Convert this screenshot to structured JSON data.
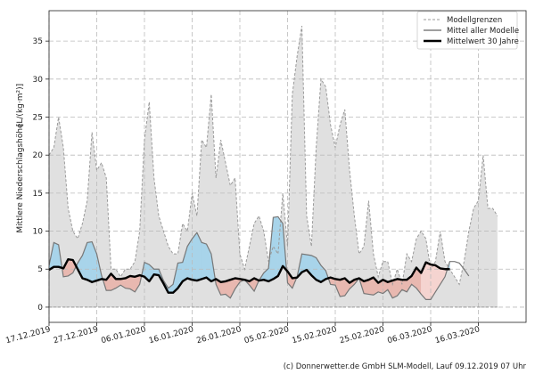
{
  "chart_data": {
    "type": "area",
    "ylabel_main": "Mittlere Niederschlagshöhe",
    "ylabel_unit": "[L/(kg·m²)]",
    "ylim": [
      -2,
      39
    ],
    "yticks": [
      0,
      5,
      10,
      15,
      20,
      25,
      30,
      35
    ],
    "x_dates": [
      "17.12.2019",
      "18.12.2019",
      "19.12.2019",
      "20.12.2019",
      "21.12.2019",
      "22.12.2019",
      "23.12.2019",
      "24.12.2019",
      "25.12.2019",
      "26.12.2019",
      "27.12.2019",
      "28.12.2019",
      "29.12.2019",
      "30.12.2019",
      "31.12.2019",
      "01.01.2020",
      "02.01.2020",
      "03.01.2020",
      "04.01.2020",
      "05.01.2020",
      "06.01.2020",
      "07.01.2020",
      "08.01.2020",
      "09.01.2020",
      "10.01.2020",
      "11.01.2020",
      "12.01.2020",
      "13.01.2020",
      "14.01.2020",
      "15.01.2020",
      "16.01.2020",
      "17.01.2020",
      "18.01.2020",
      "19.01.2020",
      "20.01.2020",
      "21.01.2020",
      "22.01.2020",
      "23.01.2020",
      "24.01.2020",
      "25.01.2020",
      "26.01.2020",
      "27.01.2020",
      "28.01.2020",
      "29.01.2020",
      "30.01.2020",
      "31.01.2020",
      "01.02.2020",
      "02.02.2020",
      "03.02.2020",
      "04.02.2020",
      "05.02.2020",
      "06.02.2020",
      "07.02.2020",
      "08.02.2020",
      "09.02.2020",
      "10.02.2020",
      "11.02.2020",
      "12.02.2020",
      "13.02.2020",
      "14.02.2020",
      "15.02.2020",
      "16.02.2020",
      "17.02.2020",
      "18.02.2020",
      "19.02.2020",
      "20.02.2020",
      "21.02.2020",
      "22.02.2020",
      "23.02.2020",
      "24.02.2020",
      "25.02.2020",
      "26.02.2020",
      "27.02.2020",
      "28.02.2020",
      "29.02.2020",
      "01.03.2020",
      "02.03.2020",
      "03.03.2020",
      "04.03.2020",
      "05.03.2020",
      "06.03.2020",
      "07.03.2020",
      "08.03.2020",
      "09.03.2020",
      "10.03.2020",
      "11.03.2020",
      "12.03.2020",
      "13.03.2020",
      "14.03.2020",
      "15.03.2020",
      "16.03.2020",
      "17.03.2020",
      "18.03.2020",
      "19.03.2020",
      "20.03.2020",
      "21.03.2020",
      "22.03.2020",
      "23.03.2020",
      "24.03.2020",
      "25.03.2020",
      "26.03.2020"
    ],
    "xtick_labels": [
      "17.12.2019",
      "27.12.2019",
      "06.01.2020",
      "16.01.2020",
      "26.01.2020",
      "05.02.2020",
      "15.02.2020",
      "25.02.2020",
      "06.03.2020",
      "16.03.2020"
    ],
    "xtick_day_index": [
      0,
      10,
      20,
      30,
      40,
      50,
      60,
      70,
      80,
      90
    ],
    "series": [
      {
        "name": "Modellgrenzen",
        "values_upper": [
          20,
          21,
          25,
          21,
          13,
          10,
          9,
          11,
          14,
          23,
          18,
          19,
          17,
          5,
          5,
          4,
          5,
          5,
          6,
          10,
          22,
          27,
          17,
          12,
          10,
          8,
          7,
          7,
          11,
          10,
          15,
          12,
          22,
          21,
          28,
          17,
          22,
          19,
          16,
          17,
          7,
          5,
          8,
          11,
          12,
          10,
          6,
          8,
          7,
          15,
          8,
          28,
          33,
          37,
          12,
          8,
          21,
          30,
          29,
          24,
          21,
          24,
          26,
          18,
          12,
          7,
          8,
          14,
          7,
          4,
          6,
          6,
          3,
          5,
          3,
          7,
          6,
          9,
          10,
          9,
          5,
          6,
          10,
          6,
          5,
          4,
          3,
          6,
          10,
          13,
          14,
          20,
          13,
          13,
          12
        ],
        "values_lower": [
          0,
          0,
          0,
          0,
          0,
          0,
          0,
          0,
          0,
          0,
          0,
          0,
          0,
          0,
          0,
          0,
          0,
          0,
          0,
          0,
          0,
          0,
          0,
          0,
          0,
          0,
          0,
          0,
          0,
          0,
          0,
          0,
          0,
          0,
          0,
          0,
          0,
          0,
          0,
          0,
          0,
          0,
          0,
          0,
          0,
          0,
          0,
          0,
          0,
          0,
          0,
          0,
          0,
          0,
          0,
          0,
          0,
          0,
          0,
          0,
          0,
          0,
          0,
          0,
          0,
          0,
          0,
          0,
          0,
          0,
          0,
          0,
          0,
          0,
          0,
          0,
          0,
          0,
          0,
          0,
          0,
          0,
          0,
          0,
          0,
          0,
          0,
          0,
          0,
          0,
          0,
          0,
          0,
          0,
          0
        ]
      },
      {
        "name": "Mittel aller Modelle",
        "values": [
          5.5,
          8.5,
          8.2,
          4,
          4.1,
          4.5,
          5.8,
          6.8,
          8.5,
          8.6,
          7,
          4.2,
          2.2,
          2.2,
          2.5,
          2.9,
          2.5,
          2.4,
          2,
          3,
          5.9,
          5.6,
          5,
          5,
          3.5,
          2.5,
          3,
          5.8,
          5.9,
          8,
          9,
          9.8,
          8.5,
          8.3,
          7,
          3,
          1.6,
          1.7,
          1.2,
          2.4,
          3.3,
          3.6,
          2.9,
          2.1,
          3.5,
          4.5,
          5.1,
          11.8,
          11.9,
          11,
          3.2,
          2.5,
          4,
          7,
          6.9,
          6.8,
          6.5,
          5.5,
          4.8,
          3,
          2.9,
          1.4,
          1.5,
          2.4,
          3,
          3.8,
          1.8,
          1.7,
          1.6,
          2,
          1.8,
          2.3,
          1.2,
          1.5,
          2.3,
          2,
          3,
          2.5,
          1.7,
          1,
          1,
          2,
          3,
          4,
          6,
          6,
          5.8,
          5,
          4.1
        ],
        "day_offset": 0
      },
      {
        "name": "Mittelwert 30 Jahre",
        "values": [
          4.9,
          5.3,
          5.3,
          5.1,
          6.3,
          6.2,
          5,
          3.8,
          3.6,
          3.3,
          3.5,
          3.7,
          3.6,
          4.4,
          3.7,
          3.7,
          3.8,
          4.1,
          4,
          4.2,
          4,
          3.4,
          4.3,
          4.2,
          3.1,
          1.9,
          1.9,
          2.5,
          3.4,
          3.8,
          3.6,
          3.5,
          3.7,
          3.9,
          3.4,
          3.7,
          3.3,
          3.4,
          3.6,
          3.8,
          3.7,
          3.6,
          3.4,
          3.8,
          3.5,
          3.6,
          3.4,
          3.7,
          4.1,
          5.4,
          4.7,
          3.8,
          3.9,
          4.6,
          4.9,
          4.2,
          3.6,
          3.3,
          3.7,
          3.9,
          3.7,
          3.6,
          3.8,
          3.2,
          3.6,
          3.8,
          3.4,
          3.6,
          3.9,
          3.2,
          3.6,
          3.3,
          3.5,
          3.7,
          3.6,
          3.6,
          4.1,
          5.2,
          4.5,
          5.9,
          5.6,
          5.5,
          5.1,
          5,
          5
        ],
        "day_offset": 0
      }
    ],
    "legend": [
      {
        "label": "Modellgrenzen",
        "style": "dashed",
        "color": "#999999"
      },
      {
        "label": "Mittel aller Modelle",
        "style": "solid",
        "color": "#666666"
      },
      {
        "label": "Mittelwert 30 Jahre",
        "style": "solid-bold",
        "color": "#000000"
      }
    ],
    "legend_position": "top-right",
    "grid": true,
    "colors": {
      "envelope_fill": "#e0e0e0",
      "envelope_line": "#9a9a9a",
      "mean_line": "#777777",
      "climate_line": "#000000",
      "above_fill": "#a8d4ea",
      "below_fill": "#e8b8b0",
      "below_fill_light": "#f5d4d0"
    }
  },
  "credit": "(c) Donnerwetter.de GmbH SLM-Modell, Lauf 09.12.2019 07 Uhr"
}
